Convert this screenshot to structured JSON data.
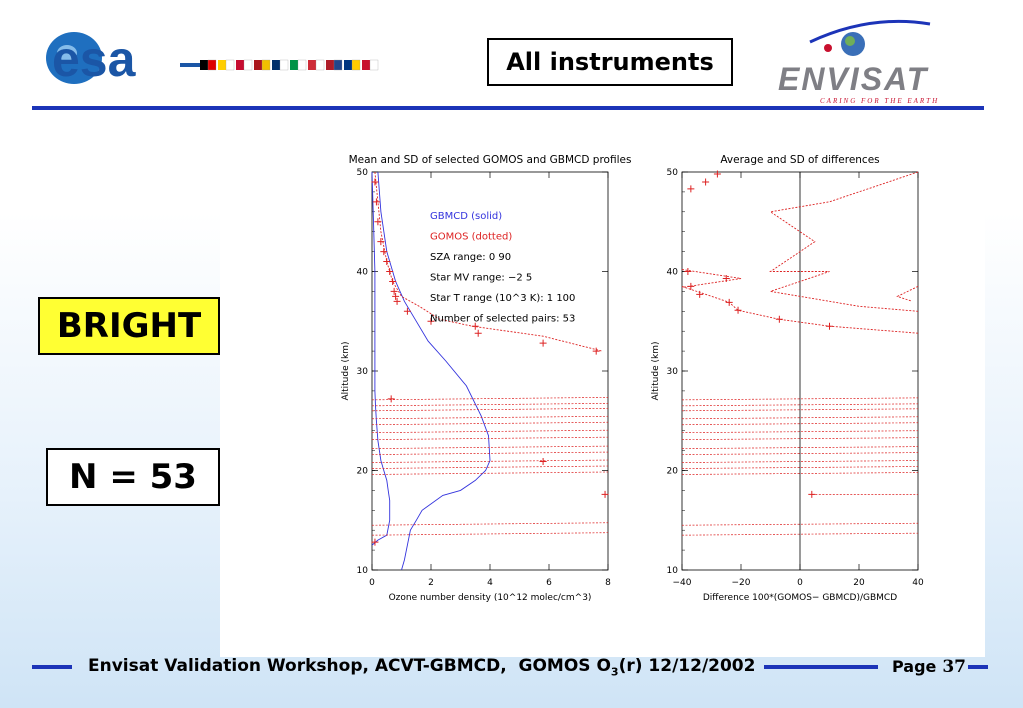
{
  "header": {
    "title": "All instruments",
    "esa_logo_text": "esa",
    "envisat_logo_text": "ENVISAT",
    "envisat_tagline": "CARING FOR THE EARTH",
    "flag_colors": [
      "#000000",
      "#dd0000",
      "#ffce00",
      "#ffffff",
      "#c60c30",
      "#ffffff",
      "#aa151b",
      "#f1bf00",
      "#002f6c",
      "#ffffff",
      "#009246",
      "#ffffff",
      "#ce2b37",
      "#ffffff",
      "#ae1c28",
      "#21468b",
      "#003580",
      "#ffcc00",
      "#c8102e",
      "#ffffff"
    ]
  },
  "labels": {
    "bright": "BRIGHT",
    "n_count": "N = 53"
  },
  "chart_data": [
    {
      "type": "line",
      "title": "Mean and SD of selected GOMOS and GBMCD profiles",
      "xlabel": "Ozone number density (10^12 molec/cm^3)",
      "ylabel": "Altitude (km)",
      "xlim": [
        0,
        8
      ],
      "ylim": [
        10,
        50
      ],
      "xticks": [
        "0",
        "2",
        "4",
        "6",
        "8"
      ],
      "yticks": [
        "10",
        "20",
        "30",
        "40",
        "50"
      ],
      "grid": false,
      "legend": [
        {
          "text": "GBMCD  (solid)",
          "color": "#3333dd"
        },
        {
          "text": "GOMOS  (dotted)",
          "color": "#dd2222"
        },
        {
          "text": "SZA range:     0    90",
          "color": "#000000"
        },
        {
          "text": "Star MV range:   −2    5",
          "color": "#000000"
        },
        {
          "text": "Star T range (10^3 K):  1 100",
          "color": "#000000"
        },
        {
          "text": "Number of selected pairs:  53",
          "color": "#000000"
        }
      ],
      "series": [
        {
          "name": "GBMCD",
          "style": "solid",
          "color": "#3333dd",
          "x": [
            0.2,
            0.3,
            0.5,
            0.8,
            1.1,
            1.5,
            1.9,
            2.5,
            3.2,
            3.7,
            3.95,
            4.0,
            3.85,
            3.5,
            3.0,
            2.4,
            1.7,
            1.5,
            1.3,
            1.1,
            1.0
          ],
          "y": [
            50,
            46,
            42,
            39,
            37,
            35,
            33,
            31,
            28.5,
            25.5,
            23.5,
            21,
            20,
            19,
            18,
            17.5,
            16,
            15,
            14,
            11,
            10
          ]
        },
        {
          "name": "GBMCD SD (left)",
          "style": "solid",
          "color": "#3333dd",
          "x": [
            0.0,
            0.05,
            0.1,
            0.1,
            0.1,
            0.1,
            0.12,
            0.15,
            0.2,
            0.3,
            0.4,
            0.5,
            0.55,
            0.6,
            0.6,
            0.5,
            0.2,
            0.0
          ],
          "y": [
            50,
            45,
            40,
            35,
            31,
            28,
            26.5,
            25,
            23,
            21,
            20,
            19,
            18,
            17,
            15,
            13.5,
            13,
            12.5
          ]
        },
        {
          "name": "GOMOS",
          "style": "dotted",
          "color": "#dd2222",
          "x": [
            0.1,
            0.2,
            0.3,
            0.5,
            0.7,
            1.0,
            1.6,
            2.3,
            3.4,
            5.8,
            7.8
          ],
          "y": [
            50,
            47,
            44,
            41,
            39,
            37.5,
            36.5,
            35.2,
            34.5,
            33.5,
            32
          ]
        }
      ],
      "gomos_points": [
        {
          "x": 0.1,
          "y": 49
        },
        {
          "x": 0.15,
          "y": 47
        },
        {
          "x": 0.2,
          "y": 45
        },
        {
          "x": 0.3,
          "y": 43
        },
        {
          "x": 0.4,
          "y": 42
        },
        {
          "x": 0.5,
          "y": 41
        },
        {
          "x": 0.6,
          "y": 40
        },
        {
          "x": 0.7,
          "y": 39
        },
        {
          "x": 0.75,
          "y": 38
        },
        {
          "x": 0.8,
          "y": 37.5
        },
        {
          "x": 0.85,
          "y": 37
        },
        {
          "x": 1.2,
          "y": 36
        },
        {
          "x": 2.0,
          "y": 35
        },
        {
          "x": 3.5,
          "y": 34.5
        },
        {
          "x": 3.6,
          "y": 33.8
        },
        {
          "x": 5.8,
          "y": 32.8
        },
        {
          "x": 7.6,
          "y": 32
        },
        {
          "x": 0.65,
          "y": 27.2
        },
        {
          "x": 5.8,
          "y": 20.9
        },
        {
          "x": 7.9,
          "y": 17.6
        },
        {
          "x": 0.1,
          "y": 12.8
        }
      ]
    },
    {
      "type": "line",
      "title": "Average and SD of differences",
      "xlabel": "Difference 100*(GOMOS− GBMCD)/GBMCD",
      "ylabel": "Altitude (km)",
      "xlim": [
        -40,
        40
      ],
      "ylim": [
        10,
        50
      ],
      "xticks": [
        "−40",
        "−20",
        "0",
        "20",
        "40"
      ],
      "yticks": [
        "10",
        "20",
        "30",
        "40",
        "50"
      ],
      "grid": false,
      "series": [
        {
          "name": "Difference SD envelope",
          "style": "dotted",
          "color": "#dd2222",
          "x": [
            40,
            10,
            -10,
            5,
            -10,
            10,
            -10,
            20,
            40
          ],
          "y": [
            50,
            47,
            46,
            43,
            40,
            40,
            38,
            36.5,
            36
          ]
        }
      ],
      "diff_points": [
        {
          "x": -28,
          "y": 49.8
        },
        {
          "x": -32,
          "y": 49
        },
        {
          "x": -37,
          "y": 48.3
        },
        {
          "x": -38,
          "y": 40
        },
        {
          "x": -25,
          "y": 39.3
        },
        {
          "x": -37,
          "y": 38.5
        },
        {
          "x": -34,
          "y": 37.7
        },
        {
          "x": -24,
          "y": 36.9
        },
        {
          "x": -21,
          "y": 36.1
        },
        {
          "x": -7,
          "y": 35.2
        },
        {
          "x": 10,
          "y": 34.5
        },
        {
          "x": 4,
          "y": 17.6
        }
      ]
    }
  ],
  "footer": {
    "text_main": "Envisat Validation Workshop, ACVT-GBMCD,  GOMOS O",
    "text_sub": "3",
    "text_tail": "(r) 12/12/2002",
    "page_label": "Page",
    "page_number": "37"
  }
}
